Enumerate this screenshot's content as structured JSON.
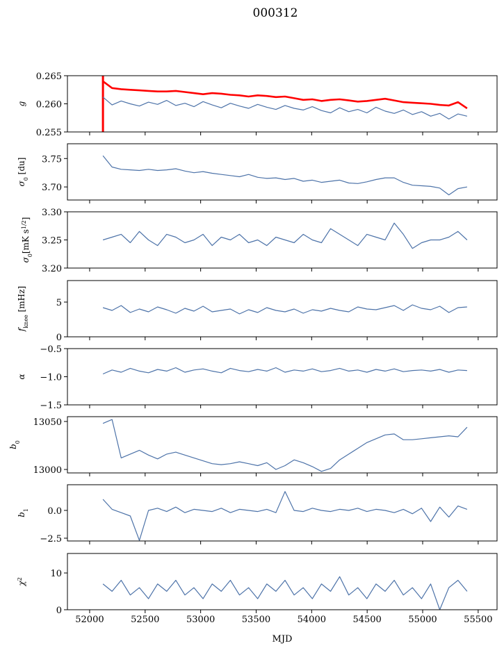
{
  "title": "000312",
  "chart_data": {
    "type": "line",
    "title": "000312",
    "xlabel": "MJD",
    "xlim": [
      51800,
      55670
    ],
    "xticks": [
      52000,
      52500,
      53000,
      53500,
      54000,
      54500,
      55000,
      55500
    ],
    "x": [
      52120,
      52202,
      52284,
      52366,
      52448,
      52530,
      52612,
      52694,
      52776,
      52858,
      52940,
      53022,
      53104,
      53186,
      53268,
      53350,
      53432,
      53514,
      53596,
      53678,
      53760,
      53842,
      53924,
      54006,
      54088,
      54170,
      54252,
      54334,
      54416,
      54498,
      54580,
      54662,
      54744,
      54826,
      54908,
      54990,
      55072,
      55154,
      55236,
      55318,
      55400
    ],
    "grid": false,
    "panels": [
      {
        "name": "g",
        "ylabel": [
          {
            "t": "g"
          }
        ],
        "ylim": [
          0.255,
          0.265
        ],
        "yticks": [
          {
            "v": 0.255,
            "l": "0.255"
          },
          {
            "v": 0.26,
            "l": "0.260"
          },
          {
            "v": 0.265,
            "l": "0.265"
          }
        ],
        "series": [
          {
            "name": "g-red",
            "color": "#ff0000",
            "width": 2.6,
            "values": [
              0.264,
              0.2628,
              0.2626,
              0.2625,
              0.2624,
              0.2623,
              0.2622,
              0.2622,
              0.2623,
              0.2621,
              0.2619,
              0.2617,
              0.2619,
              0.2618,
              0.2616,
              0.2615,
              0.2613,
              0.2615,
              0.2614,
              0.2612,
              0.2613,
              0.261,
              0.2607,
              0.2608,
              0.2605,
              0.2607,
              0.2608,
              0.2606,
              0.2604,
              0.2605,
              0.2607,
              0.2609,
              0.2606,
              0.2603,
              0.2602,
              0.2601,
              0.26,
              0.2598,
              0.2597,
              0.2603,
              0.2592
            ]
          },
          {
            "name": "g-blue",
            "color": "#4c72a8",
            "width": 1.2,
            "values": [
              0.2612,
              0.2598,
              0.2605,
              0.26,
              0.2596,
              0.2603,
              0.2599,
              0.2606,
              0.2597,
              0.2601,
              0.2595,
              0.2604,
              0.2598,
              0.2593,
              0.2601,
              0.2596,
              0.2592,
              0.2599,
              0.2594,
              0.259,
              0.2597,
              0.2592,
              0.2589,
              0.2595,
              0.2588,
              0.2584,
              0.2593,
              0.2586,
              0.259,
              0.2584,
              0.2594,
              0.2587,
              0.2583,
              0.2589,
              0.2581,
              0.2586,
              0.2578,
              0.2583,
              0.2573,
              0.2582,
              0.2578
            ]
          }
        ],
        "red_spike": {
          "x": 52120,
          "y": [
            0.255,
            0.265
          ]
        }
      },
      {
        "name": "sigma0-du",
        "ylabel": [
          {
            "t": "σ"
          },
          {
            "t": "0",
            "sub": true
          },
          {
            "t": " [du]"
          }
        ],
        "ylim": [
          3.677,
          3.776
        ],
        "yticks": [
          {
            "v": 3.7,
            "l": "3.70"
          },
          {
            "v": 3.75,
            "l": "3.75"
          }
        ],
        "series": [
          {
            "name": "sigma0-du",
            "color": "#4c72a8",
            "width": 1.2,
            "values": [
              3.755,
              3.735,
              3.731,
              3.73,
              3.729,
              3.731,
              3.729,
              3.73,
              3.732,
              3.728,
              3.725,
              3.727,
              3.724,
              3.722,
              3.72,
              3.718,
              3.722,
              3.717,
              3.715,
              3.716,
              3.713,
              3.715,
              3.71,
              3.712,
              3.708,
              3.71,
              3.712,
              3.707,
              3.706,
              3.709,
              3.713,
              3.716,
              3.716,
              3.708,
              3.703,
              3.702,
              3.701,
              3.698,
              3.686,
              3.697,
              3.7
            ]
          }
        ]
      },
      {
        "name": "sigma0-mK",
        "ylabel": [
          {
            "t": "σ"
          },
          {
            "t": "0",
            "sub": true
          },
          {
            "t": "[mK s"
          },
          {
            "t": "1/2",
            "sup": true
          },
          {
            "t": "]"
          }
        ],
        "ylim": [
          3.2,
          3.3
        ],
        "yticks": [
          {
            "v": 3.2,
            "l": "3.20"
          },
          {
            "v": 3.25,
            "l": "3.25"
          },
          {
            "v": 3.3,
            "l": "3.30"
          }
        ],
        "series": [
          {
            "name": "sigma0-mK",
            "color": "#4c72a8",
            "width": 1.2,
            "values": [
              3.25,
              3.255,
              3.26,
              3.245,
              3.265,
              3.25,
              3.24,
              3.26,
              3.255,
              3.245,
              3.25,
              3.26,
              3.24,
              3.255,
              3.25,
              3.26,
              3.245,
              3.25,
              3.24,
              3.255,
              3.25,
              3.245,
              3.26,
              3.25,
              3.245,
              3.27,
              3.26,
              3.25,
              3.24,
              3.26,
              3.255,
              3.25,
              3.28,
              3.26,
              3.235,
              3.245,
              3.25,
              3.25,
              3.255,
              3.265,
              3.25
            ]
          }
        ]
      },
      {
        "name": "fknee",
        "ylabel": [
          {
            "t": "f"
          },
          {
            "t": "knee",
            "sub": true
          },
          {
            "t": " [mHz]"
          }
        ],
        "ylim": [
          0,
          8.1
        ],
        "yticks": [
          {
            "v": 0,
            "l": "0"
          },
          {
            "v": 5,
            "l": "5"
          }
        ],
        "series": [
          {
            "name": "fknee",
            "color": "#4c72a8",
            "width": 1.2,
            "values": [
              4.2,
              3.8,
              4.5,
              3.5,
              4.0,
              3.6,
              4.3,
              3.9,
              3.4,
              4.1,
              3.7,
              4.4,
              3.6,
              3.8,
              4.0,
              3.3,
              3.9,
              3.5,
              4.2,
              3.8,
              3.6,
              4.0,
              3.4,
              3.9,
              3.7,
              4.1,
              3.8,
              3.6,
              4.3,
              4.0,
              3.9,
              4.2,
              4.5,
              3.8,
              4.6,
              4.1,
              3.9,
              4.4,
              3.5,
              4.2,
              4.3
            ]
          }
        ]
      },
      {
        "name": "alpha",
        "ylabel": [
          {
            "t": "α"
          }
        ],
        "ylim": [
          -1.5,
          -0.5
        ],
        "yticks": [
          {
            "v": -1.5,
            "l": "−1.5"
          },
          {
            "v": -1.0,
            "l": "−1.0"
          },
          {
            "v": -0.5,
            "l": "−0.5"
          }
        ],
        "series": [
          {
            "name": "alpha",
            "color": "#4c72a8",
            "width": 1.2,
            "values": [
              -0.95,
              -0.88,
              -0.92,
              -0.85,
              -0.9,
              -0.93,
              -0.87,
              -0.9,
              -0.84,
              -0.92,
              -0.88,
              -0.86,
              -0.9,
              -0.93,
              -0.85,
              -0.89,
              -0.91,
              -0.87,
              -0.9,
              -0.84,
              -0.92,
              -0.88,
              -0.9,
              -0.86,
              -0.91,
              -0.89,
              -0.85,
              -0.9,
              -0.88,
              -0.92,
              -0.87,
              -0.9,
              -0.86,
              -0.91,
              -0.89,
              -0.88,
              -0.9,
              -0.87,
              -0.92,
              -0.88,
              -0.89
            ]
          }
        ]
      },
      {
        "name": "b0",
        "ylabel": [
          {
            "t": "b"
          },
          {
            "t": "0",
            "sub": true
          }
        ],
        "ylim": [
          12996.4,
          13055
        ],
        "yticks": [
          {
            "v": 13000,
            "l": "13000"
          },
          {
            "v": 13050,
            "l": "13050"
          }
        ],
        "series": [
          {
            "name": "b0",
            "color": "#4c72a8",
            "width": 1.2,
            "values": [
              13048,
              13052,
              13012,
              13016,
              13020,
              13015,
              13011,
              13016,
              13018,
              13015,
              13012,
              13009,
              13006,
              13005,
              13006,
              13008,
              13006,
              13004,
              13007,
              13000,
              13004,
              13010,
              13007,
              13003,
              12998,
              13001,
              13010,
              13016,
              13022,
              13028,
              13032,
              13036,
              13037,
              13031,
              13031,
              13032,
              13033,
              13034,
              13035,
              13034,
              13044
            ]
          }
        ]
      },
      {
        "name": "b1",
        "ylabel": [
          {
            "t": "b"
          },
          {
            "t": "1",
            "sub": true
          }
        ],
        "ylim": [
          -2.75,
          2.31
        ],
        "yticks": [
          {
            "v": -2.5,
            "l": "−2.5"
          },
          {
            "v": 0,
            "l": "0.0"
          }
        ],
        "series": [
          {
            "name": "b1",
            "color": "#4c72a8",
            "width": 1.2,
            "values": [
              1.0,
              0.1,
              -0.2,
              -0.5,
              -2.7,
              0.0,
              0.2,
              -0.1,
              0.3,
              -0.2,
              0.1,
              0.0,
              -0.1,
              0.2,
              -0.2,
              0.1,
              0.0,
              -0.1,
              0.1,
              -0.2,
              1.7,
              0.0,
              -0.1,
              0.2,
              0.0,
              -0.1,
              0.1,
              0.0,
              0.2,
              -0.1,
              0.1,
              0.0,
              -0.2,
              0.1,
              -0.3,
              0.2,
              -1.0,
              0.3,
              -0.6,
              0.4,
              0.1
            ]
          }
        ]
      },
      {
        "name": "chi2",
        "ylabel": [
          {
            "t": "χ"
          },
          {
            "t": "2",
            "sup": true
          }
        ],
        "ylim": [
          0,
          15.3
        ],
        "yticks": [
          {
            "v": 0,
            "l": "0"
          },
          {
            "v": 10,
            "l": "10"
          }
        ],
        "series": [
          {
            "name": "chi2",
            "color": "#4c72a8",
            "width": 1.2,
            "values": [
              7,
              5,
              8,
              4,
              6,
              3,
              7,
              5,
              8,
              4,
              6,
              3,
              7,
              5,
              8,
              4,
              6,
              3,
              7,
              5,
              8,
              4,
              6,
              3,
              7,
              5,
              9,
              4,
              6,
              3,
              7,
              5,
              8,
              4,
              6,
              3,
              7,
              0,
              6,
              8,
              5
            ]
          }
        ]
      }
    ]
  }
}
